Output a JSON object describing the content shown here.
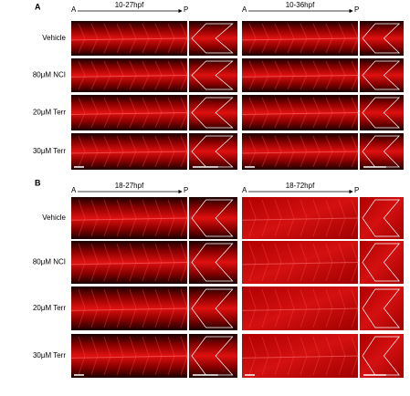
{
  "panels": [
    {
      "label": "A",
      "columns": [
        {
          "title": "10-27hpf",
          "start": "A",
          "end": "P"
        },
        {
          "title": "10-36hpf",
          "start": "A",
          "end": "P"
        }
      ],
      "rows": [
        "Vehicle",
        "80μM NCI",
        "20μM Terr",
        "30μM Terr"
      ]
    },
    {
      "label": "B",
      "columns": [
        {
          "title": "18-27hpf",
          "start": "A",
          "end": "P"
        },
        {
          "title": "18-72hpf",
          "start": "A",
          "end": "P"
        }
      ],
      "rows": [
        "Vehicle",
        "80μM NCI",
        "20μM Terr",
        "30μM Terr"
      ]
    }
  ]
}
